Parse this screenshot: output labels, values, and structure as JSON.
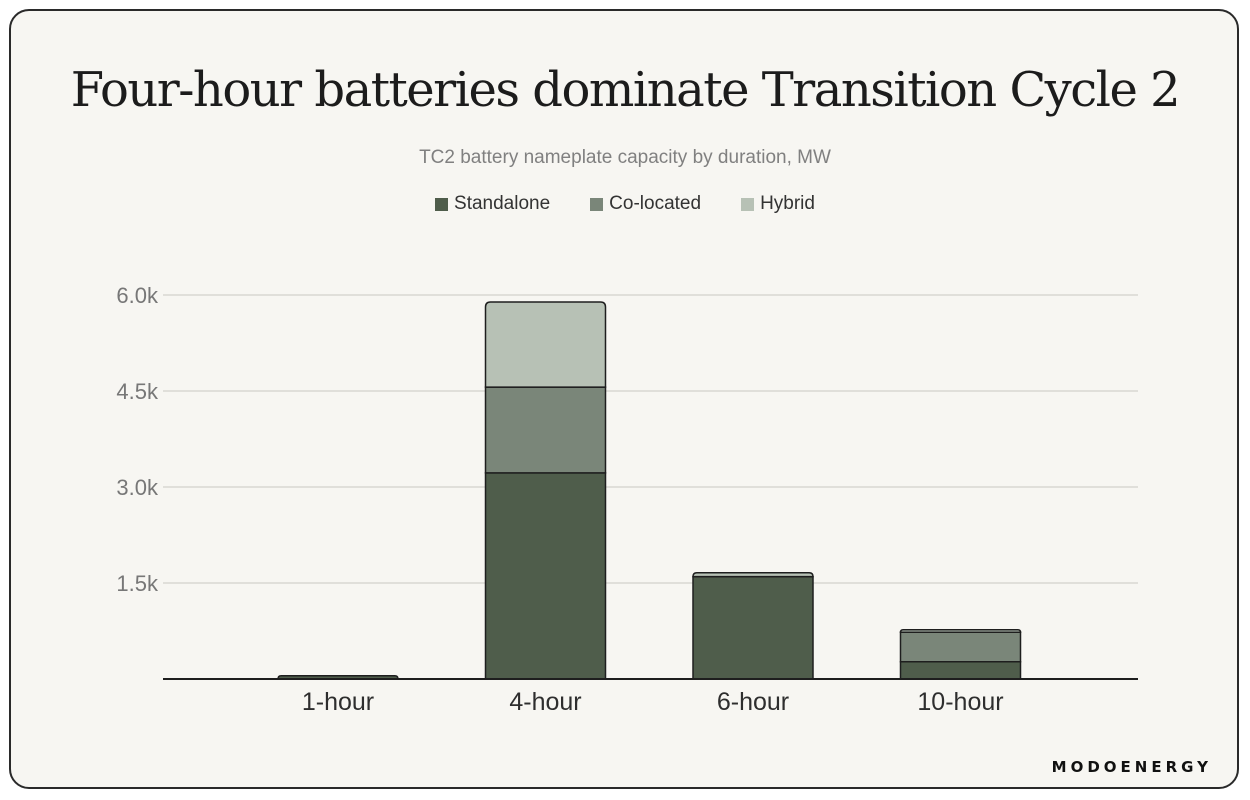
{
  "title": "Four-hour batteries dominate Transition Cycle 2",
  "brand": "MODOENERGY",
  "chart_data": {
    "type": "bar",
    "stacked": true,
    "title": "Four-hour batteries dominate Transition Cycle 2",
    "subtitle": "TC2 battery nameplate capacity by duration, MW",
    "categories": [
      "1-hour",
      "4-hour",
      "6-hour",
      "10-hour"
    ],
    "series": [
      {
        "name": "Standalone",
        "color": "#4f5d4b",
        "values": [
          50,
          3220,
          1600,
          270
        ]
      },
      {
        "name": "Co-located",
        "color": "#7a8679",
        "values": [
          0,
          1340,
          0,
          460
        ]
      },
      {
        "name": "Hybrid",
        "color": "#b7c1b5",
        "values": [
          0,
          1330,
          60,
          40
        ]
      }
    ],
    "yticks": [
      1500,
      3000,
      4500,
      6000
    ],
    "ytick_labels": [
      "1.5k",
      "3.0k",
      "4.5k",
      "6.0k"
    ],
    "ylim": [
      0,
      6000
    ],
    "grid": true,
    "legend_position": "top-center"
  }
}
